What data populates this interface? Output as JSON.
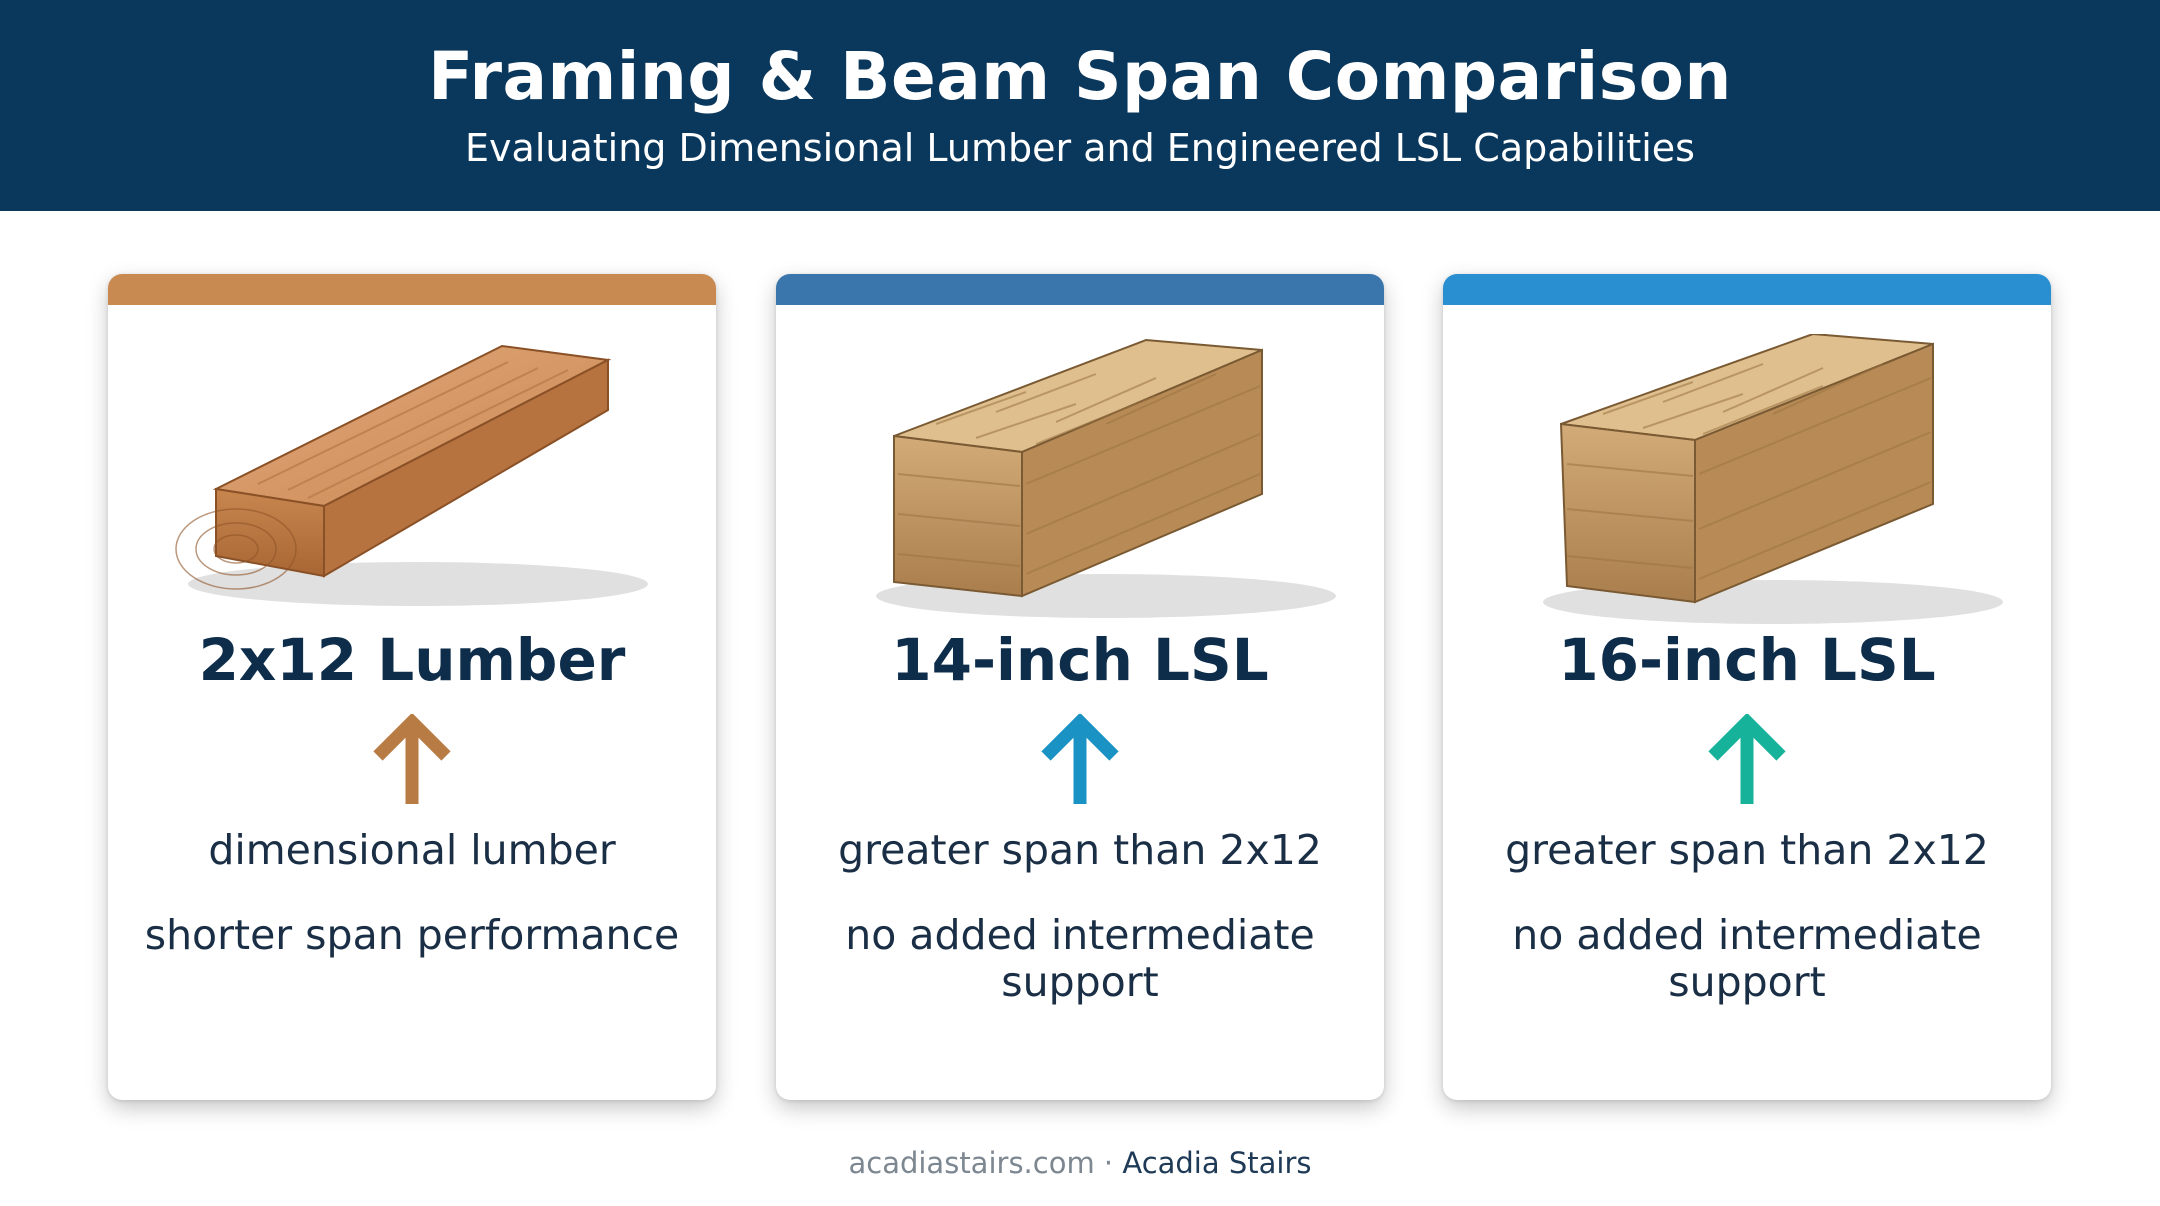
{
  "header": {
    "title": "Framing & Beam Span Comparison",
    "subtitle": "Evaluating Dimensional Lumber and Engineered LSL Capabilities"
  },
  "cards": [
    {
      "title": "2x12 Lumber",
      "line1": "dimensional lumber",
      "line2": "shorter span performance",
      "accent": "#c98a52",
      "arrow_color": "#b97b44",
      "icon": "lumber-board-icon"
    },
    {
      "title": "14-inch LSL",
      "line1": "greater span than 2x12",
      "line2": "no added intermediate support",
      "accent": "#3a76ac",
      "arrow_color": "#1a93c4",
      "icon": "lsl-beam-icon"
    },
    {
      "title": "16-inch LSL",
      "line1": "greater span than 2x12",
      "line2": "no added intermediate support",
      "accent": "#2a8fd0",
      "arrow_color": "#17b29a",
      "icon": "lsl-beam-icon"
    }
  ],
  "footer": {
    "site": "acadiastairs.com",
    "separator": " · ",
    "brand": "Acadia Stairs"
  }
}
